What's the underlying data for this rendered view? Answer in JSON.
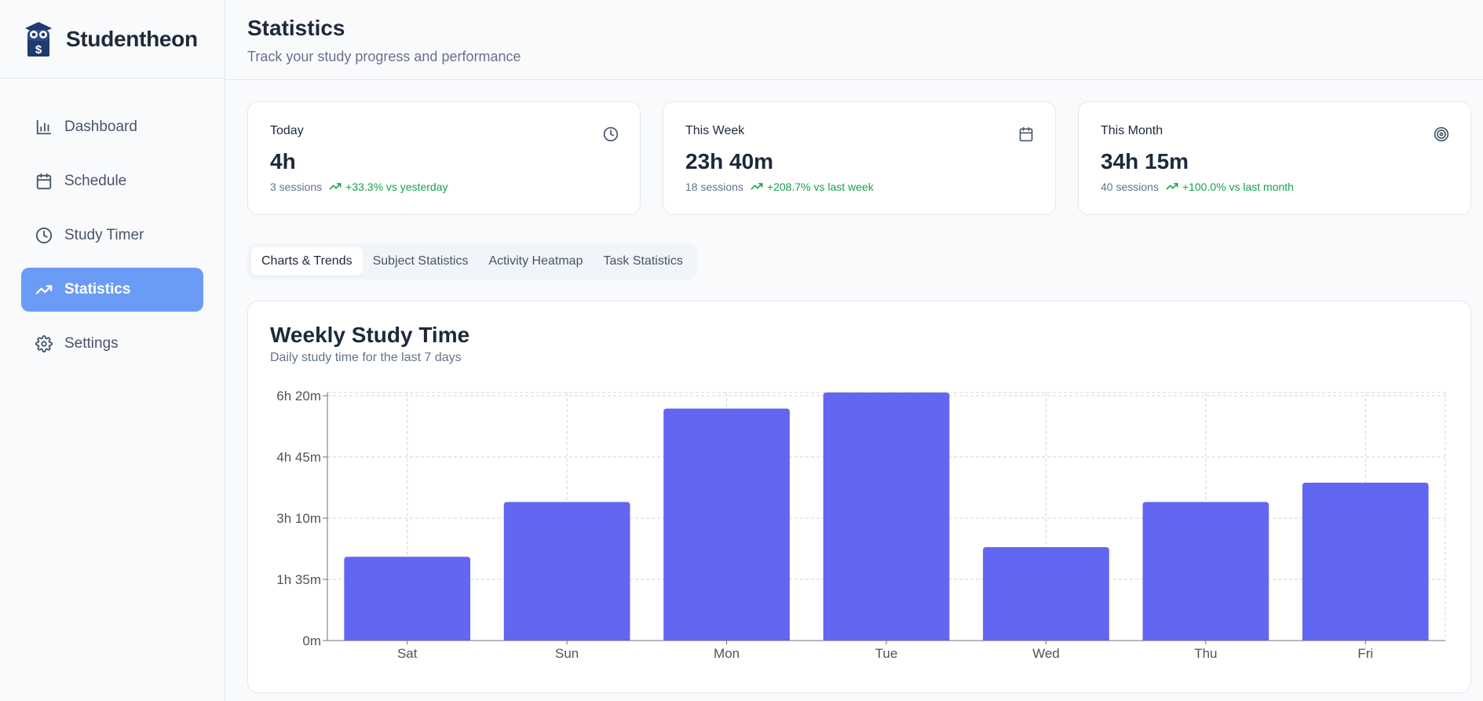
{
  "brand": {
    "name": "Studentheon",
    "logo_icon": "owl-book-logo-icon",
    "logo_color": "#1e3a6e"
  },
  "sidebar": {
    "items": [
      {
        "label": "Dashboard",
        "icon": "bar-chart-icon",
        "active": false
      },
      {
        "label": "Schedule",
        "icon": "calendar-icon",
        "active": false
      },
      {
        "label": "Study Timer",
        "icon": "clock-icon",
        "active": false
      },
      {
        "label": "Statistics",
        "icon": "trending-up-icon",
        "active": true
      },
      {
        "label": "Settings",
        "icon": "gear-icon",
        "active": false
      }
    ],
    "active_color": "#6b9cf5"
  },
  "header": {
    "title": "Statistics",
    "subtitle": "Track your study progress and performance"
  },
  "cards": [
    {
      "label": "Today",
      "value": "4h",
      "sessions": "3 sessions",
      "trend": "+33.3% vs yesterday",
      "icon": "clock-icon"
    },
    {
      "label": "This Week",
      "value": "23h 40m",
      "sessions": "18 sessions",
      "trend": "+208.7% vs last week",
      "icon": "calendar-icon"
    },
    {
      "label": "This Month",
      "value": "34h 15m",
      "sessions": "40 sessions",
      "trend": "+100.0% vs last month",
      "icon": "target-icon"
    }
  ],
  "tabs": [
    {
      "label": "Charts & Trends",
      "active": true
    },
    {
      "label": "Subject Statistics",
      "active": false
    },
    {
      "label": "Activity Heatmap",
      "active": false
    },
    {
      "label": "Task Statistics",
      "active": false
    }
  ],
  "chart_panel": {
    "title": "Weekly Study Time",
    "subtitle": "Daily study time for the last 7 days"
  },
  "chart_data": {
    "type": "bar",
    "title": "Weekly Study Time",
    "subtitle": "Daily study time for the last 7 days",
    "categories": [
      "Sat",
      "Sun",
      "Mon",
      "Tue",
      "Wed",
      "Thu",
      "Fri"
    ],
    "values_minutes": [
      130,
      215,
      360,
      385,
      145,
      215,
      245
    ],
    "y_ticks_minutes": [
      0,
      95,
      190,
      285,
      380
    ],
    "y_tick_labels": [
      "0m",
      "1h 35m",
      "3h 10m",
      "4h 45m",
      "6h 20m"
    ],
    "ylim_minutes": [
      0,
      385
    ],
    "grid": true,
    "bar_color": "#6366f1"
  },
  "colors": {
    "positive_trend": "#16a34a",
    "text_primary": "#1e293b",
    "text_muted": "#64748b"
  }
}
